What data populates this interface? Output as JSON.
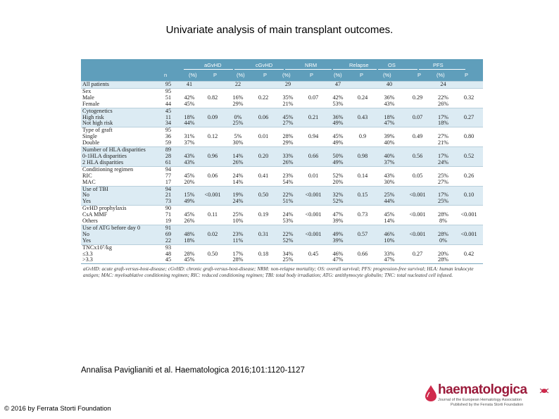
{
  "title": "Univariate analysis of main transplant outcomes.",
  "header": {
    "groups": [
      "aGvHD",
      "cGvHD",
      "NRM",
      "Relapse",
      "OS",
      "PFS"
    ],
    "subs": [
      "n",
      "(%)",
      "P",
      "(%)",
      "P",
      "(%)",
      "P",
      "(%)",
      "P",
      "(%)",
      "P",
      "(%)",
      "P"
    ]
  },
  "rows": [
    {
      "cells": [
        "All patients",
        "95",
        "41",
        "",
        "22",
        "",
        "29",
        "",
        "47",
        "",
        "40",
        "",
        "24",
        ""
      ],
      "band": 0,
      "start": true
    },
    {
      "cells": [
        "Sex",
        "95",
        "",
        "",
        "",
        "",
        "",
        "",
        "",
        "",
        "",
        "",
        "",
        ""
      ],
      "band": 1,
      "start": true
    },
    {
      "cells": [
        "   Male",
        "51",
        "42%",
        "0.82",
        "16%",
        "0.22",
        "35%",
        "0.07",
        "42%",
        "0.24",
        "36%",
        "0.29",
        "22%",
        "0.32"
      ],
      "band": 1
    },
    {
      "cells": [
        "   Female",
        "44",
        "45%",
        "",
        "29%",
        "",
        "21%",
        "",
        "53%",
        "",
        "43%",
        "",
        "26%",
        ""
      ],
      "band": 1
    },
    {
      "cells": [
        "Cytogenetics",
        "45",
        "",
        "",
        "",
        "",
        "",
        "",
        "",
        "",
        "",
        "",
        "",
        ""
      ],
      "band": 0,
      "start": true
    },
    {
      "cells": [
        "   High risk",
        "11",
        "18%",
        "0.09",
        "0%",
        "0.06",
        "45%",
        "0.21",
        "36%",
        "0.43",
        "18%",
        "0.07",
        "17%",
        "0.27"
      ],
      "band": 0
    },
    {
      "cells": [
        "   Not high risk",
        "34",
        "44%",
        "",
        "25%",
        "",
        "27%",
        "",
        "49%",
        "",
        "47%",
        "",
        "18%",
        ""
      ],
      "band": 0
    },
    {
      "cells": [
        "Type of graft",
        "95",
        "",
        "",
        "",
        "",
        "",
        "",
        "",
        "",
        "",
        "",
        "",
        ""
      ],
      "band": 1,
      "start": true
    },
    {
      "cells": [
        "   Single",
        "36",
        "31%",
        "0.12",
        "5%",
        "0.01",
        "28%",
        "0.94",
        "45%",
        "0.9",
        "39%",
        "0.49",
        "27%",
        "0.80"
      ],
      "band": 1
    },
    {
      "cells": [
        "   Double",
        "59",
        "37%",
        "",
        "30%",
        "",
        "29%",
        "",
        "49%",
        "",
        "40%",
        "",
        "21%",
        ""
      ],
      "band": 1
    },
    {
      "cells": [
        "Number of HLA disparities",
        "89",
        "",
        "",
        "",
        "",
        "",
        "",
        "",
        "",
        "",
        "",
        "",
        ""
      ],
      "band": 0,
      "start": true
    },
    {
      "cells": [
        "   0-1HLA disparities",
        "28",
        "43%",
        "0.96",
        "14%",
        "0.20",
        "33%",
        "0.66",
        "50%",
        "0.98",
        "40%",
        "0.56",
        "17%",
        "0.52"
      ],
      "band": 0
    },
    {
      "cells": [
        "   2 HLA disparities",
        "61",
        "43%",
        "",
        "26%",
        "",
        "26%",
        "",
        "49%",
        "",
        "37%",
        "",
        "24%",
        ""
      ],
      "band": 0
    },
    {
      "cells": [
        "Conditioning regimen",
        "94",
        "",
        "",
        "",
        "",
        "",
        "",
        "",
        "",
        "",
        "",
        "",
        ""
      ],
      "band": 1,
      "start": true
    },
    {
      "cells": [
        "   RIC",
        "77",
        "45%",
        "0.06",
        "24%",
        "0.41",
        "23%",
        "0.01",
        "52%",
        "0.14",
        "43%",
        "0.05",
        "25%",
        "0.26"
      ],
      "band": 1
    },
    {
      "cells": [
        "   MAC",
        "17",
        "20%",
        "",
        "14%",
        "",
        "54%",
        "",
        "20%",
        "",
        "30%",
        "",
        "27%",
        ""
      ],
      "band": 1
    },
    {
      "cells": [
        "Use of TBI",
        "94",
        "",
        "",
        "",
        "",
        "",
        "",
        "",
        "",
        "",
        "",
        "",
        ""
      ],
      "band": 0,
      "start": true
    },
    {
      "cells": [
        "   No",
        "21",
        "15%",
        "<0.001",
        "19%",
        "0.50",
        "22%",
        "<0.001",
        "32%",
        "0.15",
        "25%",
        "<0.001",
        "17%",
        "0.10"
      ],
      "band": 0
    },
    {
      "cells": [
        "   Yes",
        "73",
        "49%",
        "",
        "24%",
        "",
        "51%",
        "",
        "52%",
        "",
        "44%",
        "",
        "25%",
        ""
      ],
      "band": 0
    },
    {
      "cells": [
        "GvHD prophylaxis",
        "90",
        "",
        "",
        "",
        "",
        "",
        "",
        "",
        "",
        "",
        "",
        "",
        ""
      ],
      "band": 1,
      "start": true
    },
    {
      "cells": [
        "   CsA MMF",
        "71",
        "45%",
        "0.11",
        "25%",
        "0.19",
        "24%",
        "<0.001",
        "47%",
        "0.73",
        "45%",
        "<0.001",
        "28%",
        "<0.001"
      ],
      "band": 1
    },
    {
      "cells": [
        "   Others",
        "19",
        "26%",
        "",
        "10%",
        "",
        "53%",
        "",
        "39%",
        "",
        "14%",
        "",
        "8%",
        ""
      ],
      "band": 1
    },
    {
      "cells": [
        "Use of ATG before day 0",
        "91",
        "",
        "",
        "",
        "",
        "",
        "",
        "",
        "",
        "",
        "",
        "",
        ""
      ],
      "band": 0,
      "start": true
    },
    {
      "cells": [
        "   No",
        "69",
        "48%",
        "0.02",
        "23%",
        "0.31",
        "22%",
        "<0.001",
        "49%",
        "0.57",
        "46%",
        "<0.001",
        "28%",
        "<0.001"
      ],
      "band": 0
    },
    {
      "cells": [
        "   Yes",
        "22",
        "18%",
        "",
        "11%",
        "",
        "52%",
        "",
        "39%",
        "",
        "10%",
        "",
        "0%",
        ""
      ],
      "band": 0
    },
    {
      "cells": [
        "TNCx10⁷/kg",
        "93",
        "",
        "",
        "",
        "",
        "",
        "",
        "",
        "",
        "",
        "",
        "",
        ""
      ],
      "band": 1,
      "start": true
    },
    {
      "cells": [
        "   ≤3.3",
        "48",
        "28%",
        "0.50",
        "17%",
        "0.18",
        "34%",
        "0.45",
        "46%",
        "0.66",
        "33%",
        "0.27",
        "20%",
        "0.42"
      ],
      "band": 1
    },
    {
      "cells": [
        "   >3.3",
        "45",
        "45%",
        "",
        "28%",
        "",
        "25%",
        "",
        "47%",
        "",
        "47%",
        "",
        "28%",
        ""
      ],
      "band": 1
    }
  ],
  "footnote": "aGvHD: acute graft-versus-host-disease; cGvHD: chronic graft-versus-host-disease; NRM: non-relapse mortality; OS: overall survival; PFS: progression-free survival; HLA: human leukocyte antigen; MAC: myeloablative conditioning regimen; RIC: reduced conditioning regimen; TBI: total body irradiation; ATG: antithymocyte globulin; TNC: total nucleated cell infused.",
  "citation": "Annalisa Paviglianiti et al. Haematologica 2016;101:1120-1127",
  "copyright": "© 2016 by Ferrata Storti Foundation",
  "logo": {
    "word": "haematologica",
    "tag1": "Journal of the European Hematology Association",
    "tag2": "Published by the Ferrata Storti Foundation"
  },
  "colors": {
    "header": "#5f9ebb",
    "band": "#dcebf3",
    "brand": "#9b1b3b"
  }
}
